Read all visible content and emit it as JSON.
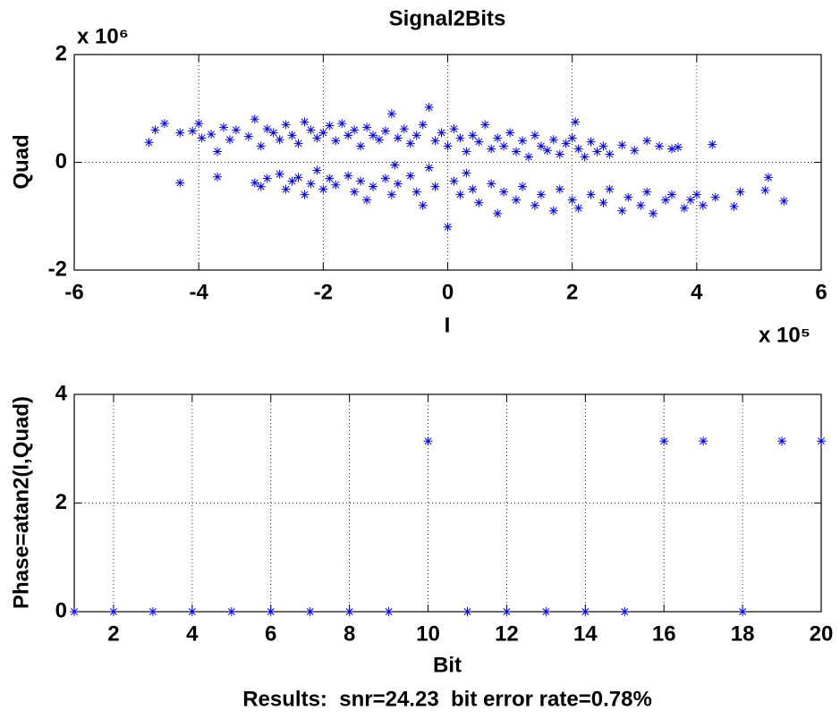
{
  "chart_data": [
    {
      "type": "scatter",
      "title": "Signal2Bits",
      "x_label": "I",
      "y_label": "Quad",
      "x_multiplier": "x 10⁵",
      "y_multiplier": "x 10⁶",
      "color": "#0000ff",
      "grid": true,
      "xlim": [
        -6,
        6
      ],
      "xticks": [
        -6,
        -4,
        -2,
        0,
        2,
        4,
        6
      ],
      "ylim": [
        -2,
        2
      ],
      "yticks": [
        -2,
        0,
        2
      ],
      "x": [
        -4.8,
        -4.7,
        -4.55,
        -4.3,
        -4.1,
        -4.0,
        -3.95,
        -3.8,
        -3.7,
        -3.6,
        -3.5,
        -3.4,
        -3.2,
        -3.1,
        -3.0,
        -2.9,
        -2.8,
        -2.7,
        -2.6,
        -2.5,
        -2.4,
        -2.3,
        -2.2,
        -2.1,
        -2.0,
        -1.9,
        -1.8,
        -1.7,
        -1.6,
        -1.5,
        -1.4,
        -1.3,
        -1.2,
        -1.1,
        -1.0,
        -0.9,
        -0.8,
        -0.7,
        -0.6,
        -0.5,
        -0.4,
        -0.3,
        -0.2,
        -0.1,
        0.0,
        0.1,
        0.2,
        0.3,
        0.4,
        0.5,
        0.6,
        0.7,
        0.8,
        0.9,
        1.0,
        1.1,
        1.2,
        1.3,
        1.4,
        1.5,
        1.6,
        1.7,
        1.8,
        1.9,
        2.0,
        2.1,
        2.2,
        2.3,
        2.4,
        2.5,
        2.6,
        2.8,
        3.0,
        3.2,
        3.4,
        3.6,
        3.7,
        4.25,
        2.05,
        -0.85,
        -4.3,
        -3.7,
        -3.1,
        -3.0,
        -2.9,
        -2.7,
        -2.6,
        -2.5,
        -2.4,
        -2.3,
        -2.2,
        -2.1,
        -2.0,
        -1.9,
        -1.8,
        -1.6,
        -1.5,
        -1.4,
        -1.3,
        -1.2,
        -1.0,
        -0.9,
        -0.8,
        -0.6,
        -0.5,
        -0.4,
        -0.2,
        0.0,
        0.1,
        0.2,
        0.4,
        0.5,
        0.7,
        0.8,
        0.9,
        1.1,
        1.2,
        1.4,
        1.5,
        1.7,
        1.8,
        2.0,
        2.1,
        2.3,
        2.5,
        2.6,
        2.8,
        2.9,
        3.1,
        3.2,
        3.3,
        3.5,
        3.6,
        3.8,
        3.9,
        4.0,
        4.1,
        4.3,
        4.6,
        4.7,
        5.1,
        5.15,
        5.4,
        0.3,
        -0.3
      ],
      "values": [
        0.37,
        0.6,
        0.72,
        0.55,
        0.58,
        0.72,
        0.45,
        0.52,
        0.2,
        0.65,
        0.42,
        0.6,
        0.48,
        0.8,
        0.3,
        0.62,
        0.55,
        0.42,
        0.7,
        0.5,
        0.35,
        0.75,
        0.6,
        0.45,
        0.55,
        0.68,
        0.4,
        0.72,
        0.5,
        0.6,
        0.3,
        0.65,
        0.5,
        0.42,
        0.58,
        0.9,
        0.45,
        0.62,
        0.35,
        0.5,
        0.7,
        1.02,
        0.4,
        0.55,
        0.3,
        0.62,
        0.45,
        0.2,
        0.5,
        0.38,
        0.7,
        0.25,
        0.45,
        0.3,
        0.55,
        0.2,
        0.4,
        0.1,
        0.5,
        0.3,
        0.22,
        0.42,
        0.15,
        0.35,
        0.45,
        0.25,
        0.1,
        0.38,
        0.2,
        0.3,
        0.15,
        0.32,
        0.22,
        0.4,
        0.3,
        0.25,
        0.28,
        0.33,
        0.75,
        -0.05,
        -0.38,
        -0.27,
        -0.38,
        -0.45,
        -0.3,
        -0.22,
        -0.5,
        -0.35,
        -0.28,
        -0.6,
        -0.4,
        -0.15,
        -0.5,
        -0.3,
        -0.42,
        -0.25,
        -0.55,
        -0.35,
        -0.7,
        -0.45,
        -0.3,
        -0.6,
        -0.4,
        -0.25,
        -0.55,
        -0.8,
        -0.45,
        -1.2,
        -0.35,
        -0.6,
        -0.5,
        -0.75,
        -0.4,
        -0.95,
        -0.55,
        -0.7,
        -0.45,
        -0.8,
        -0.6,
        -0.9,
        -0.5,
        -0.7,
        -0.85,
        -0.6,
        -0.75,
        -0.5,
        -0.9,
        -0.65,
        -0.8,
        -0.55,
        -0.95,
        -0.7,
        -0.6,
        -0.85,
        -0.7,
        -0.6,
        -0.8,
        -0.65,
        -0.82,
        -0.55,
        -0.52,
        -0.28,
        -0.72,
        -0.2,
        -0.1
      ]
    },
    {
      "type": "scatter",
      "x_label": "Bit",
      "y_label": "Phase=atan2(I,Quad)",
      "color": "#0000ff",
      "grid": true,
      "xlim": [
        1,
        20
      ],
      "xticks": [
        2,
        4,
        6,
        8,
        10,
        12,
        14,
        16,
        18,
        20
      ],
      "ylim": [
        0,
        4
      ],
      "yticks": [
        0,
        2,
        4
      ],
      "x": [
        1,
        2,
        3,
        4,
        5,
        6,
        7,
        8,
        9,
        10,
        11,
        12,
        13,
        14,
        15,
        16,
        17,
        18,
        19,
        20
      ],
      "values": [
        0,
        0,
        0,
        0,
        0,
        0,
        0,
        0,
        0,
        3.14,
        0,
        0,
        0,
        0,
        0,
        3.14,
        3.14,
        0,
        3.14,
        3.14
      ]
    }
  ],
  "results": "Results:  snr=24.23  bit error rate=0.78%"
}
